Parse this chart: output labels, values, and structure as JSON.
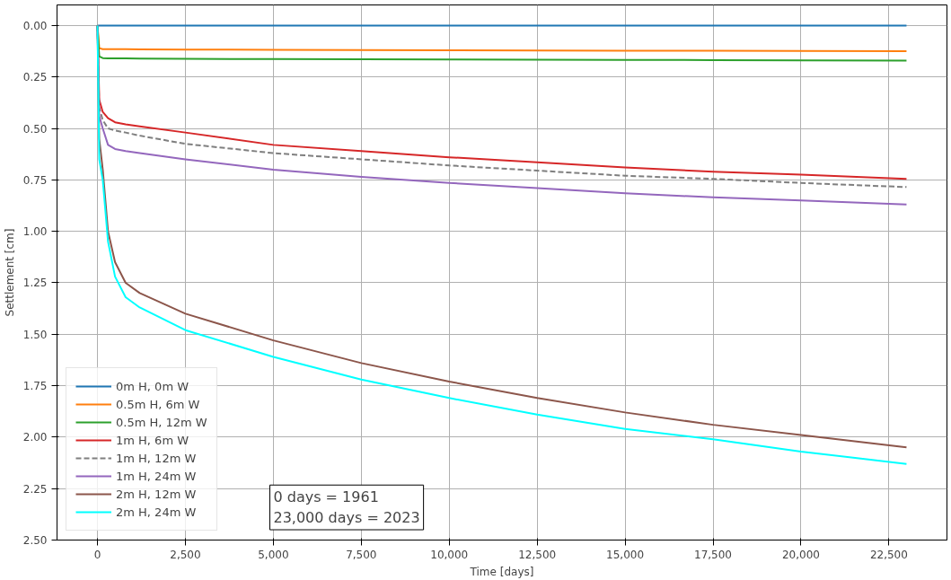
{
  "chart_data": {
    "type": "line",
    "xlabel": "Time [days]",
    "ylabel": "Settlement [cm]",
    "xlim": [
      -1150,
      24150
    ],
    "ylim": [
      2.5,
      -0.1
    ],
    "xticks": [
      0,
      {
        "value": 2500,
        "label": "2,500"
      },
      {
        "value": 5000,
        "label": "5,000"
      },
      {
        "value": 7500,
        "label": "7,500"
      },
      {
        "value": 10000,
        "label": "10,000"
      },
      {
        "value": 12500,
        "label": "12,500"
      },
      {
        "value": 15000,
        "label": "15,000"
      },
      {
        "value": 17500,
        "label": "17,500"
      },
      {
        "value": 20000,
        "label": "20,000"
      },
      {
        "value": 22500,
        "label": "22,500"
      }
    ],
    "yticks": [
      {
        "value": 0,
        "label": "0.00"
      },
      {
        "value": 0.25,
        "label": "0.25"
      },
      {
        "value": 0.5,
        "label": "0.50"
      },
      {
        "value": 0.75,
        "label": "0.75"
      },
      {
        "value": 1.0,
        "label": "1.00"
      },
      {
        "value": 1.25,
        "label": "1.25"
      },
      {
        "value": 1.5,
        "label": "1.50"
      },
      {
        "value": 1.75,
        "label": "1.75"
      },
      {
        "value": 2.0,
        "label": "2.00"
      },
      {
        "value": 2.25,
        "label": "2.25"
      },
      {
        "value": 2.5,
        "label": "2.50"
      }
    ],
    "grid": true,
    "legend": "bottom left",
    "annotations": [
      "0 days = 1961\n23,000 days = 2023"
    ],
    "x": [
      0,
      50,
      150,
      300,
      500,
      800,
      1200,
      2500,
      5000,
      7500,
      10000,
      12500,
      15000,
      17500,
      20000,
      23000
    ],
    "series": [
      {
        "name": "0m H, 0m W",
        "color": "#1f77b4",
        "values": [
          0,
          0,
          0,
          0,
          0,
          0,
          0,
          0,
          0,
          0,
          0,
          0,
          0,
          0,
          0,
          0
        ]
      },
      {
        "name": "0.5m H, 6m W",
        "color": "#ff7f0e",
        "values": [
          0,
          0.11,
          0.115,
          0.115,
          0.115,
          0.115,
          0.116,
          0.117,
          0.118,
          0.119,
          0.12,
          0.121,
          0.122,
          0.123,
          0.124,
          0.125
        ]
      },
      {
        "name": "0.5m H, 12m W",
        "color": "#2ca02c",
        "values": [
          0,
          0.15,
          0.158,
          0.16,
          0.16,
          0.16,
          0.161,
          0.162,
          0.163,
          0.164,
          0.165,
          0.166,
          0.167,
          0.168,
          0.169,
          0.17
        ]
      },
      {
        "name": "1m H, 6m W",
        "color": "#d62728",
        "values": [
          0,
          0.36,
          0.42,
          0.45,
          0.47,
          0.48,
          0.49,
          0.52,
          0.58,
          0.61,
          0.64,
          0.665,
          0.69,
          0.71,
          0.725,
          0.745
        ]
      },
      {
        "name": "1m H, 12m W",
        "color": "#7f7f7f",
        "line_style": "dashed",
        "values": [
          0,
          0.4,
          0.46,
          0.5,
          0.51,
          0.52,
          0.535,
          0.575,
          0.62,
          0.65,
          0.68,
          0.705,
          0.73,
          0.745,
          0.765,
          0.785
        ]
      },
      {
        "name": "1m H, 24m W",
        "color": "#9467bd",
        "values": [
          0,
          0.44,
          0.5,
          0.58,
          0.6,
          0.61,
          0.62,
          0.65,
          0.7,
          0.735,
          0.765,
          0.79,
          0.815,
          0.835,
          0.85,
          0.87
        ]
      },
      {
        "name": "2m H, 12m W",
        "color": "#8c564b",
        "values": [
          0,
          0.55,
          0.7,
          1.0,
          1.15,
          1.25,
          1.3,
          1.4,
          1.53,
          1.64,
          1.73,
          1.81,
          1.88,
          1.94,
          1.99,
          2.05
        ]
      },
      {
        "name": "2m H, 24m W",
        "color": "#00ffff",
        "values": [
          0,
          0.65,
          0.75,
          1.05,
          1.22,
          1.32,
          1.37,
          1.48,
          1.61,
          1.72,
          1.81,
          1.89,
          1.96,
          2.01,
          2.07,
          2.13
        ]
      }
    ]
  }
}
